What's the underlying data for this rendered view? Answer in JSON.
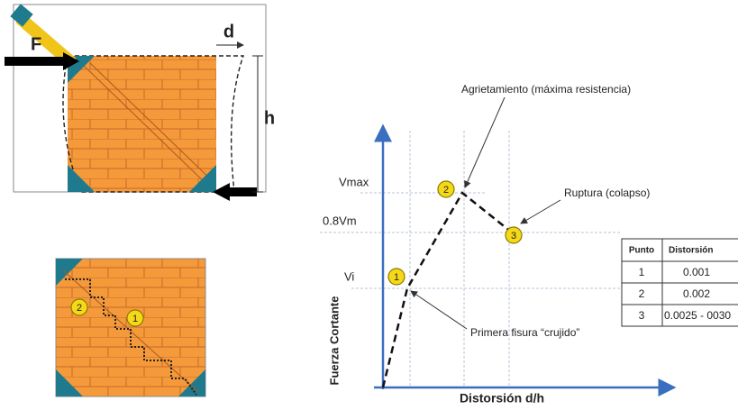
{
  "wall_diagram": {
    "force_label": "F",
    "displacement_label": "d",
    "height_label": "h"
  },
  "crack_diagram": {
    "markers": [
      "2",
      "1"
    ]
  },
  "graph": {
    "y_axis_label": "Fuerza Cortante",
    "x_axis_label": "Distorsión d/h",
    "y_levels": [
      "Vmax",
      "0.8Vm",
      "Vi"
    ],
    "points": [
      {
        "marker": "1",
        "annotation": "Primera fisura “crujido”"
      },
      {
        "marker": "2",
        "annotation": "Agrietamiento (máxima resistencia)"
      },
      {
        "marker": "3",
        "annotation": "Ruptura (colapso)"
      }
    ]
  },
  "table": {
    "header": [
      "Punto",
      "Distorsión"
    ],
    "rows": [
      [
        "1",
        "0.001"
      ],
      [
        "2",
        "0.002"
      ],
      [
        "3",
        "0.0025 - 0030"
      ]
    ]
  }
}
